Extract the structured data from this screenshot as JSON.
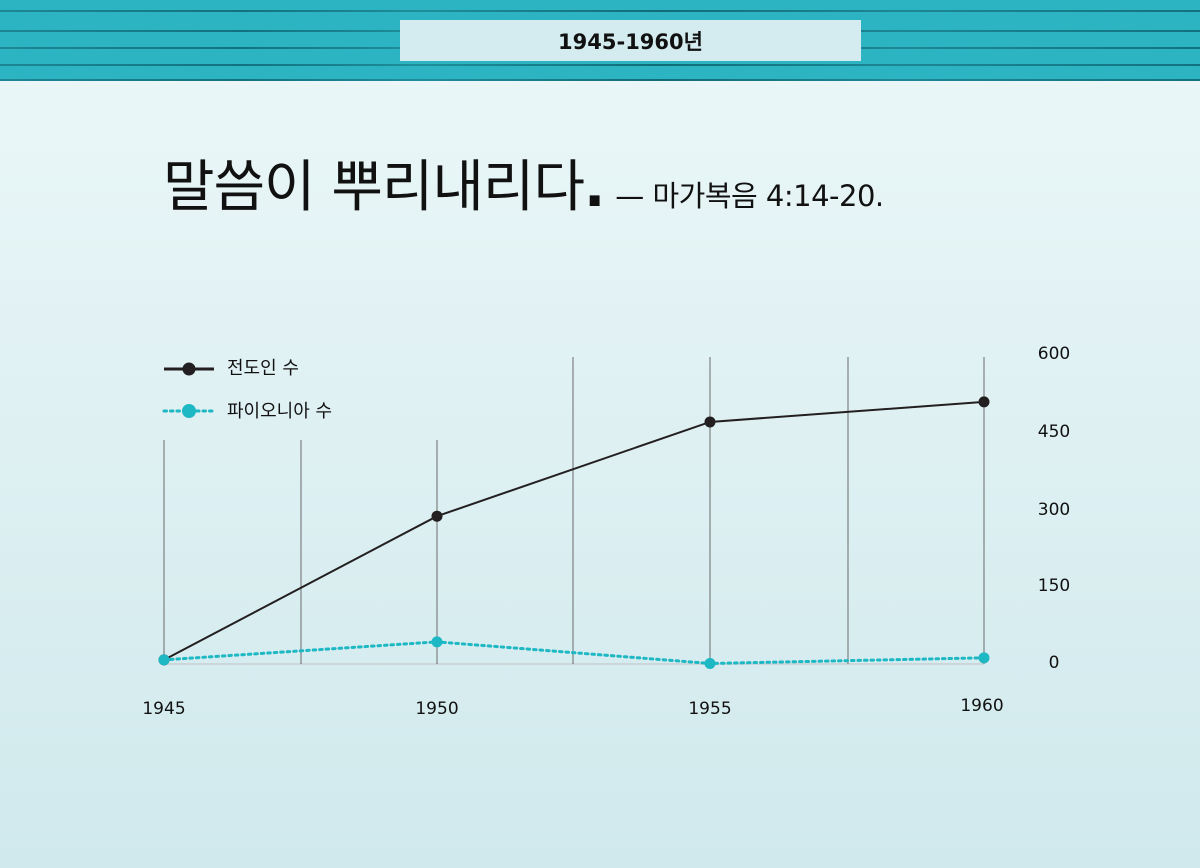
{
  "header": {
    "label": "1945-1960년",
    "band_color": "#2cb4c3"
  },
  "title": {
    "main": "말씀이 뿌리내리다",
    "dot": ".",
    "reference": "— 마가복음 4:14-20."
  },
  "legend": {
    "items": [
      {
        "label": "전도인 수",
        "color": "#231f20",
        "style": "solid"
      },
      {
        "label": "파이오니아 수",
        "color": "#1eb8c4",
        "style": "dotted"
      }
    ]
  },
  "axis": {
    "y_ticks": [
      "600",
      "450",
      "300",
      "150",
      "0"
    ],
    "x_ticks": [
      "1945",
      "1950",
      "1955",
      "1960"
    ]
  },
  "chart_data": {
    "type": "line",
    "title": "말씀이 뿌리내리다. — 마가복음 4:14-20.",
    "subtitle": "1945-1960년",
    "x": [
      1945,
      1950,
      1955,
      1960
    ],
    "series": [
      {
        "name": "전도인 수",
        "values": [
          8,
          287,
          470,
          509
        ],
        "color": "#231f20",
        "line": "solid"
      },
      {
        "name": "파이오니아 수",
        "values": [
          8,
          43,
          1,
          12
        ],
        "color": "#1eb8c4",
        "line": "dotted"
      }
    ],
    "xlabel": "",
    "ylabel": "",
    "ylim": [
      0,
      600
    ],
    "y_ticks": [
      0,
      150,
      300,
      450,
      600
    ],
    "y_axis_position": "right",
    "grid": "vertical lines",
    "legend_position": "top-left"
  }
}
